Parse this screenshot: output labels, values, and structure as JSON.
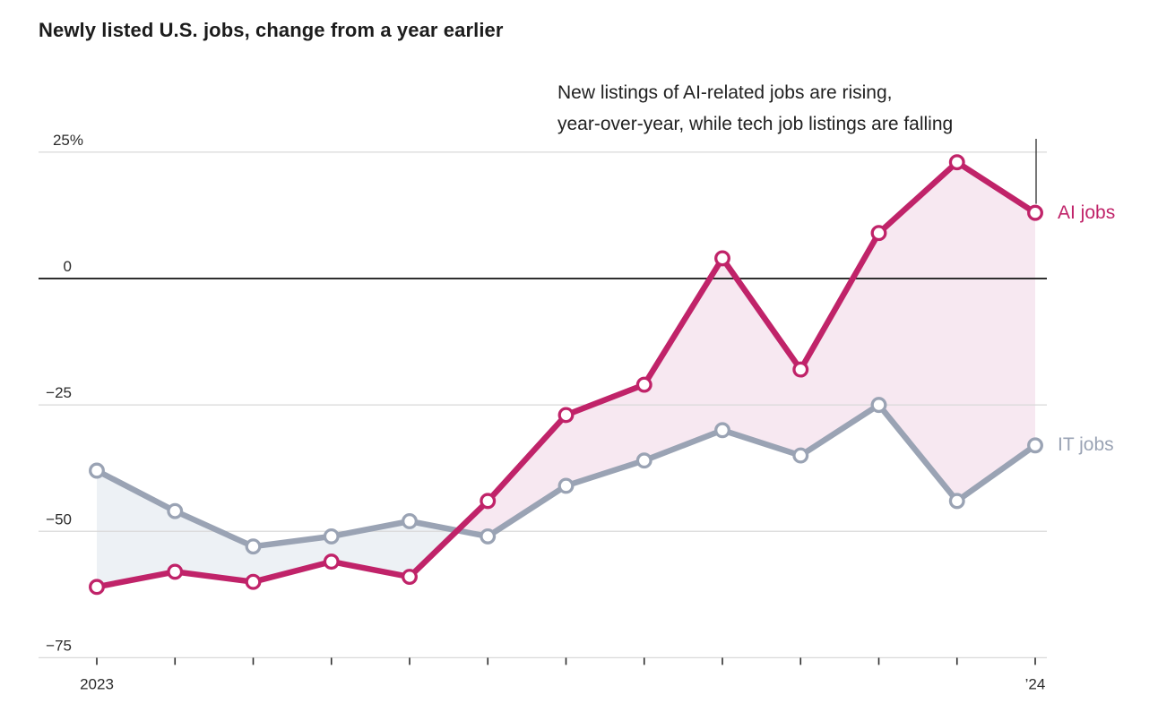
{
  "title": "Newly listed U.S. jobs, change from a year earlier",
  "annotation": {
    "line1": "New listings of AI-related jobs are rising,",
    "line2": "year-over-year, while tech job listings are falling"
  },
  "chart_data": {
    "type": "line",
    "x_labels": [
      "2023",
      "",
      "",
      "",
      "",
      "",
      "",
      "",
      "",
      "",
      "",
      "",
      "’24"
    ],
    "series": [
      {
        "name": "AI jobs",
        "color": "#c02369",
        "values": [
          -61,
          -58,
          -60,
          -56,
          -59,
          -44,
          -27,
          -21,
          4,
          -18,
          9,
          23,
          13
        ]
      },
      {
        "name": "IT jobs",
        "color": "#9aa3b4",
        "values": [
          -38,
          -46,
          -53,
          -51,
          -48,
          -51,
          -41,
          -36,
          -30,
          -35,
          -25,
          -44,
          -33
        ]
      }
    ],
    "y_ticks": [
      {
        "value": 25,
        "label": "25%"
      },
      {
        "value": 0,
        "label": "0"
      },
      {
        "value": -25,
        "label": "−25"
      },
      {
        "value": -50,
        "label": "−50"
      },
      {
        "value": -75,
        "label": "−75"
      }
    ],
    "ylim": [
      -75,
      25
    ],
    "grid": true,
    "legend_position": "right-of-last-point",
    "colors": {
      "ai_fill": "#f7e8f1",
      "it_fill": "#edf1f5",
      "grid_line": "#d9d9d9",
      "zero_line": "#2e2e2e",
      "tick_mark": "#2e2e2e",
      "text": "#222222",
      "marker_fill": "#ffffff"
    }
  }
}
